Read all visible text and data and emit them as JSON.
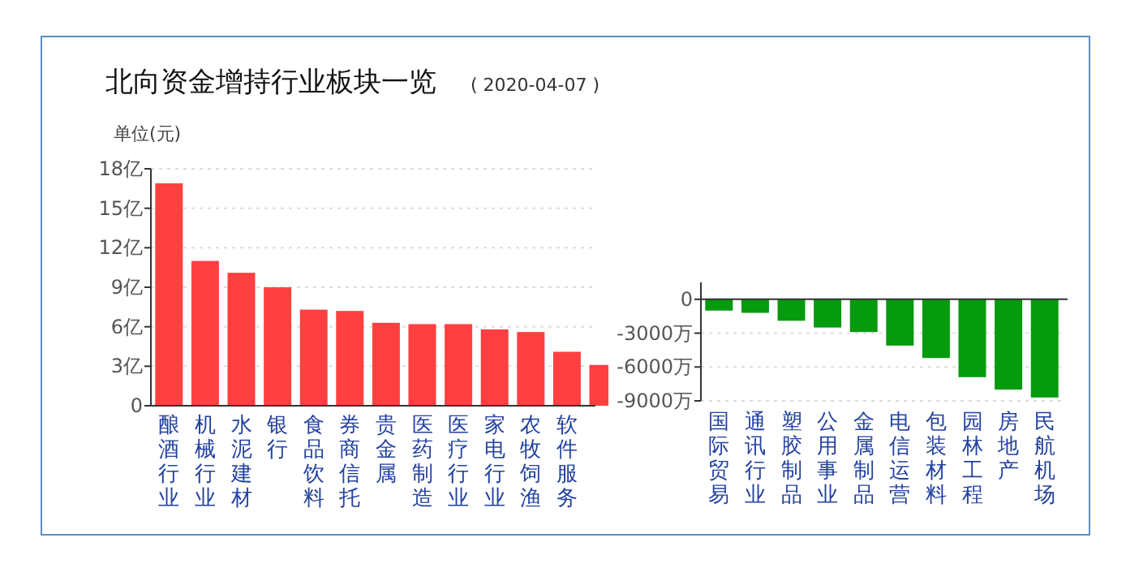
{
  "chart_data": [
    {
      "type": "bar",
      "title": "北向资金增持行业板块一览",
      "subtitle": "( 2020-04-07 )",
      "ylabel": "单位(元)",
      "categories": [
        "酿酒行业",
        "机械行业",
        "水泥建材",
        "银行",
        "食品饮料",
        "券商信托",
        "贵金属",
        "医药制造",
        "医疗行业",
        "家电行业",
        "农牧饲渔",
        "软件服务",
        null
      ],
      "values": [
        16.9,
        11.0,
        10.1,
        9.0,
        7.3,
        7.2,
        6.3,
        6.2,
        6.2,
        5.8,
        5.6,
        4.1,
        3.1
      ],
      "color": "#ff4040",
      "ylim": [
        0,
        18
      ],
      "yticks": [
        0,
        {
          "value": 3,
          "label": "3亿"
        },
        {
          "value": 6,
          "label": "6亿"
        },
        {
          "value": 9,
          "label": "9亿"
        },
        {
          "value": 12,
          "label": "12亿"
        },
        {
          "value": 15,
          "label": "15亿"
        },
        {
          "value": 18,
          "label": "18亿"
        }
      ],
      "grid": "y"
    },
    {
      "type": "bar",
      "categories": [
        "国际贸易",
        "通讯行业",
        "塑胶制品",
        "公用事业",
        "金属制品",
        "电信运营",
        "包装材料",
        "园林工程",
        "房地产",
        "民航机场"
      ],
      "values": [
        -1000,
        -1200,
        -1900,
        -2500,
        -2900,
        -4100,
        -5200,
        -6900,
        -8000,
        -8700
      ],
      "color": "#069a0e",
      "ylim": [
        -9000,
        1500
      ],
      "yticks": [
        0,
        {
          "value": -3000,
          "label": "-3000万"
        },
        {
          "value": -6000,
          "label": "-6000万"
        },
        {
          "value": -9000,
          "label": "-9000万"
        }
      ],
      "grid": "y"
    }
  ]
}
